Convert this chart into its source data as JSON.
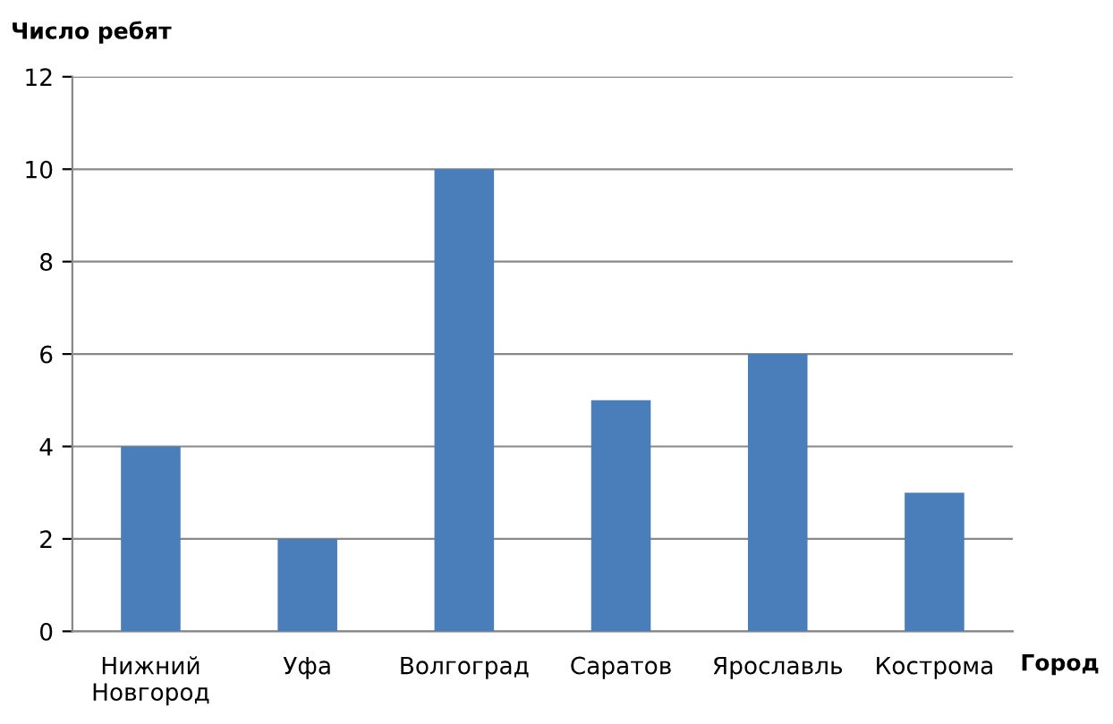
{
  "chart_data": {
    "type": "bar",
    "ylabel": "Число ребят",
    "xlabel": "Город",
    "categories": [
      "Нижний Новгород",
      "Уфа",
      "Волгоград",
      "Саратов",
      "Ярославль",
      "Кострома"
    ],
    "values": [
      4,
      2,
      10,
      5,
      6,
      3
    ],
    "color": "#4a7ebb",
    "ylim": [
      0,
      12
    ],
    "yticks": [
      0,
      2,
      4,
      6,
      8,
      10,
      12
    ],
    "grid": "y",
    "legend": false
  }
}
